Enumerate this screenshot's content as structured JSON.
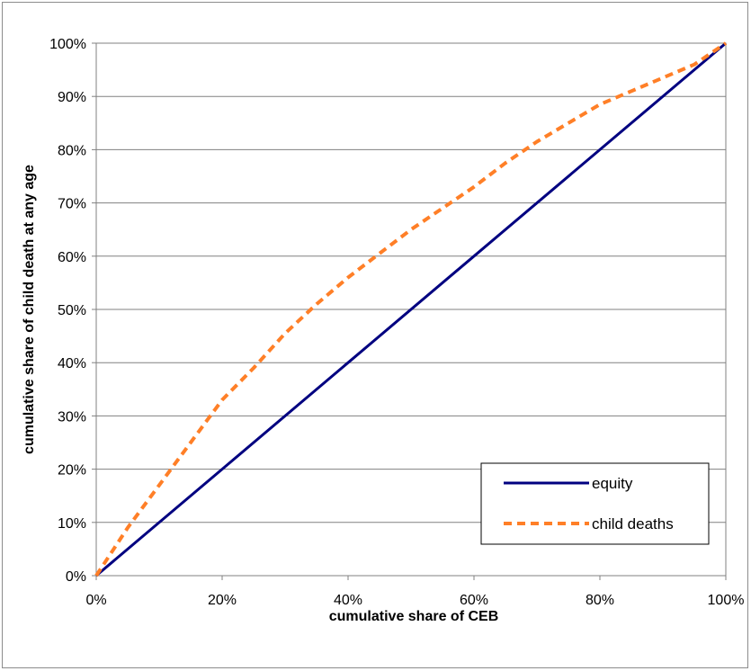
{
  "chart_data": {
    "type": "line",
    "title": "",
    "xlabel": "cumulative share of CEB",
    "ylabel": "cumulative share of child death at any age",
    "xlim": [
      0,
      1
    ],
    "ylim": [
      0,
      1
    ],
    "x_ticks": [
      "0%",
      "20%",
      "40%",
      "60%",
      "80%",
      "100%"
    ],
    "y_ticks": [
      "0%",
      "10%",
      "20%",
      "30%",
      "40%",
      "50%",
      "60%",
      "70%",
      "80%",
      "90%",
      "100%"
    ],
    "grid": "horizontal",
    "legend_position": "bottom-right",
    "series": [
      {
        "name": "equity",
        "color": "#000080",
        "style": "solid",
        "x": [
          0,
          0.2,
          0.4,
          0.6,
          0.8,
          1.0
        ],
        "y": [
          0,
          0.2,
          0.4,
          0.6,
          0.8,
          1.0
        ]
      },
      {
        "name": "child deaths",
        "color": "#ff7f27",
        "style": "dashed",
        "x": [
          0,
          0.05,
          0.1,
          0.15,
          0.2,
          0.25,
          0.3,
          0.35,
          0.4,
          0.45,
          0.5,
          0.55,
          0.6,
          0.65,
          0.7,
          0.75,
          0.8,
          0.85,
          0.9,
          0.95,
          1.0
        ],
        "y": [
          0,
          0.09,
          0.17,
          0.25,
          0.33,
          0.39,
          0.455,
          0.51,
          0.56,
          0.605,
          0.65,
          0.69,
          0.73,
          0.775,
          0.815,
          0.85,
          0.885,
          0.91,
          0.935,
          0.96,
          1.0
        ]
      }
    ]
  }
}
